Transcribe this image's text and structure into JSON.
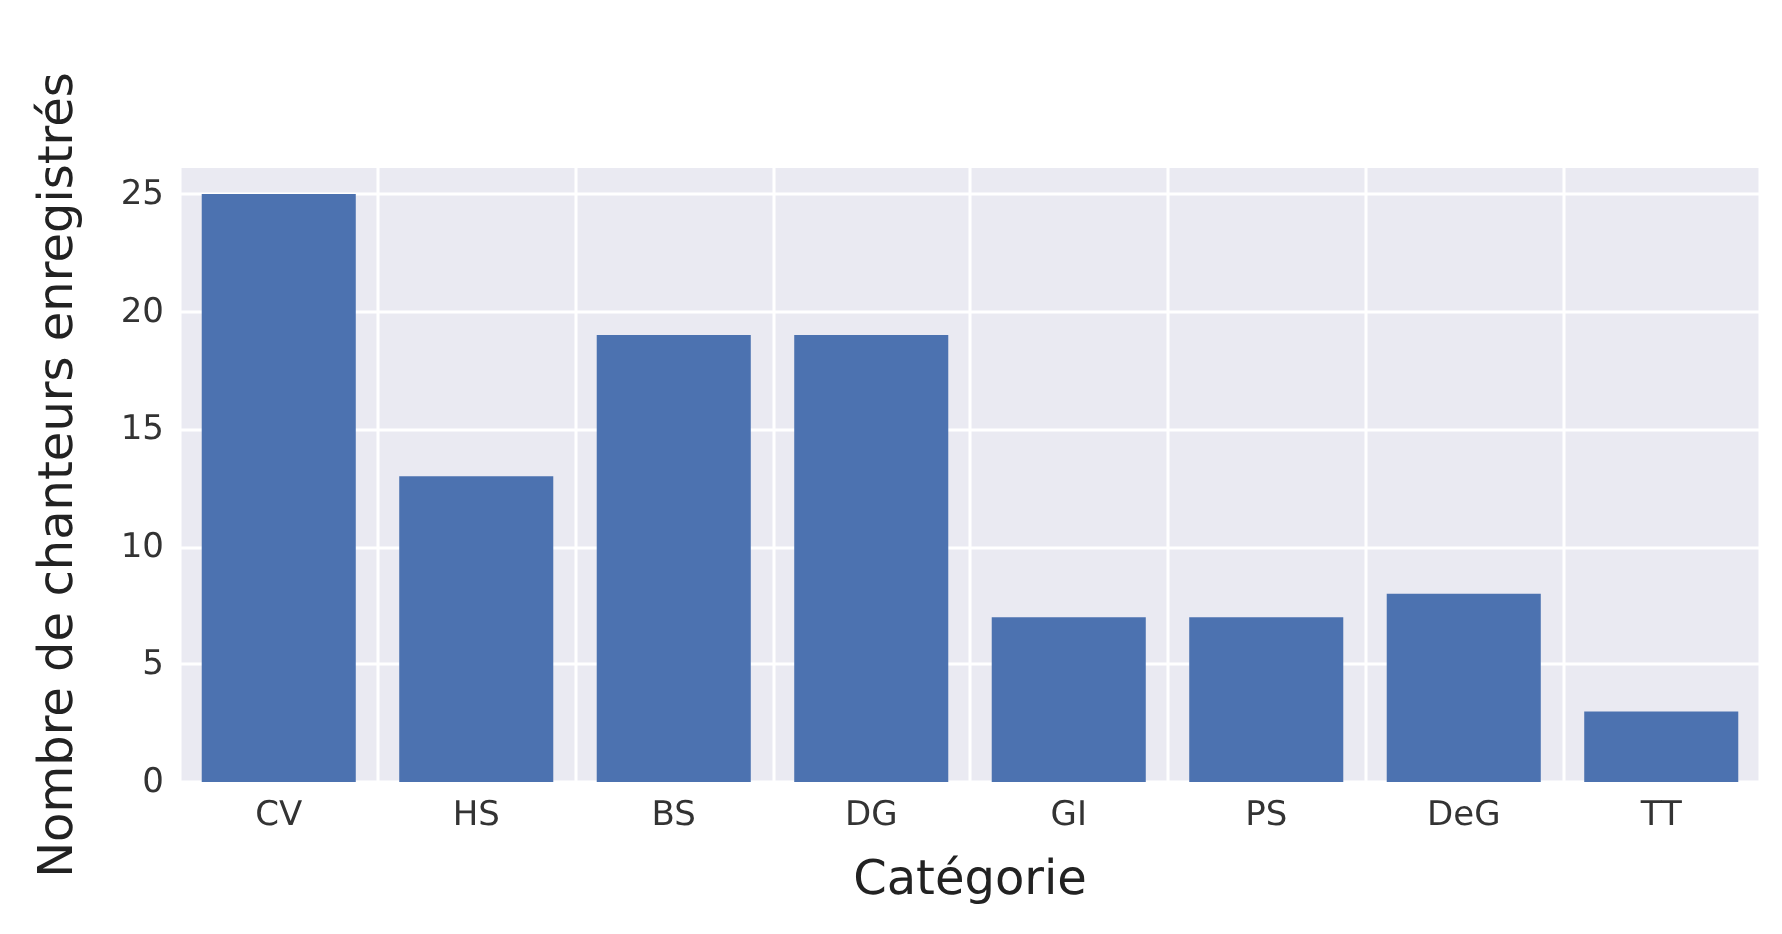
{
  "chart_data": {
    "type": "bar",
    "xlabel": "Catégorie",
    "ylabel": "Nombre de chanteurs enregistrés",
    "categories": [
      "CV",
      "HS",
      "BS",
      "DG",
      "GI",
      "PS",
      "DeG",
      "TT"
    ],
    "values": [
      25,
      13,
      19,
      19,
      7,
      7,
      8,
      3
    ],
    "color": "#4c72b0",
    "ylim": [
      0,
      26.1
    ],
    "yticks": [
      0,
      5,
      10,
      15,
      20,
      25
    ],
    "grid": true
  }
}
